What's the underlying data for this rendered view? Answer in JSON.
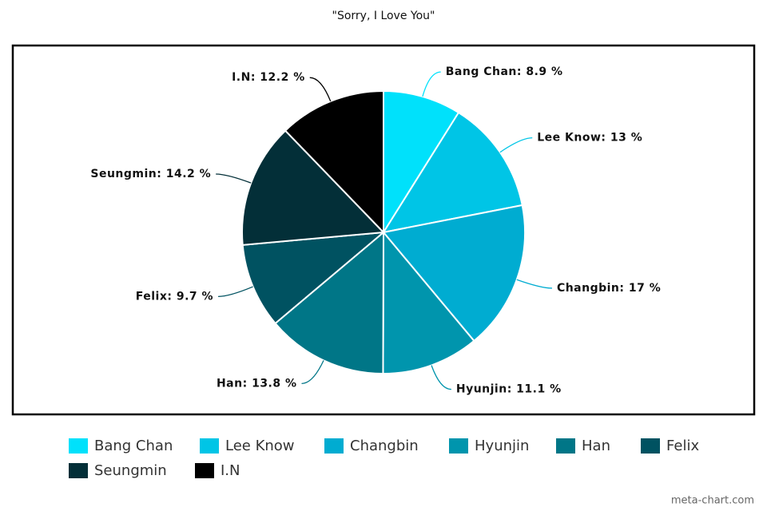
{
  "chart_data": {
    "type": "pie",
    "title": "\"Sorry, I Love You\"",
    "categories": [
      "Bang Chan",
      "Lee Know",
      "Changbin",
      "Hyunjin",
      "Han",
      "Felix",
      "Seungmin",
      "I.N"
    ],
    "values": [
      8.9,
      13,
      17,
      11.1,
      13.8,
      9.7,
      14.2,
      12.2
    ],
    "value_labels": [
      "Bang Chan: 8.9 %",
      "Lee Know: 13 %",
      "Changbin: 17 %",
      "Hyunjin: 11.1 %",
      "Han: 13.8 %",
      "Felix: 9.7 %",
      "Seungmin: 14.2 %",
      "I.N: 12.2 %"
    ],
    "colors": [
      "#00e1fb",
      "#00c5e6",
      "#00acd1",
      "#0095ad",
      "#007687",
      "#005261",
      "#032f38",
      "#000000"
    ],
    "legend": "bottom"
  },
  "credit": "meta-chart.com"
}
